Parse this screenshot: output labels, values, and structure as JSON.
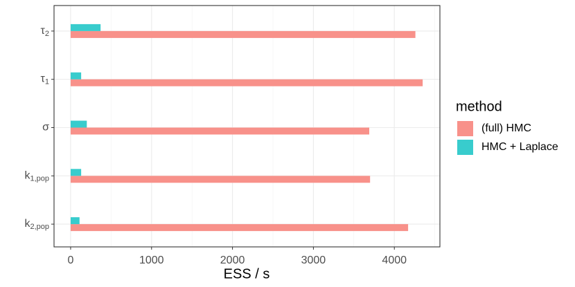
{
  "chart_data": {
    "type": "bar",
    "orientation": "horizontal",
    "x_label": "ESS / s",
    "categories": [
      {
        "base": "k",
        "sub": "2,pop"
      },
      {
        "base": "k",
        "sub": "1,pop"
      },
      {
        "base": "σ",
        "sub": ""
      },
      {
        "base": "τ",
        "sub": "1"
      },
      {
        "base": "τ",
        "sub": "2"
      }
    ],
    "series": [
      {
        "name": "(full) HMC",
        "color": "#f8918a",
        "values": [
          4170,
          3700,
          3690,
          4350,
          4260
        ]
      },
      {
        "name": "HMC + Laplace",
        "color": "#38cccd",
        "values": [
          110,
          130,
          200,
          130,
          370
        ]
      }
    ],
    "legend_title": "method",
    "xlim": [
      -205,
      4563
    ],
    "xticks": [
      0,
      1000,
      2000,
      3000,
      4000
    ],
    "xminor": [
      500,
      1500,
      2500,
      3500,
      4500
    ],
    "grid": true
  }
}
